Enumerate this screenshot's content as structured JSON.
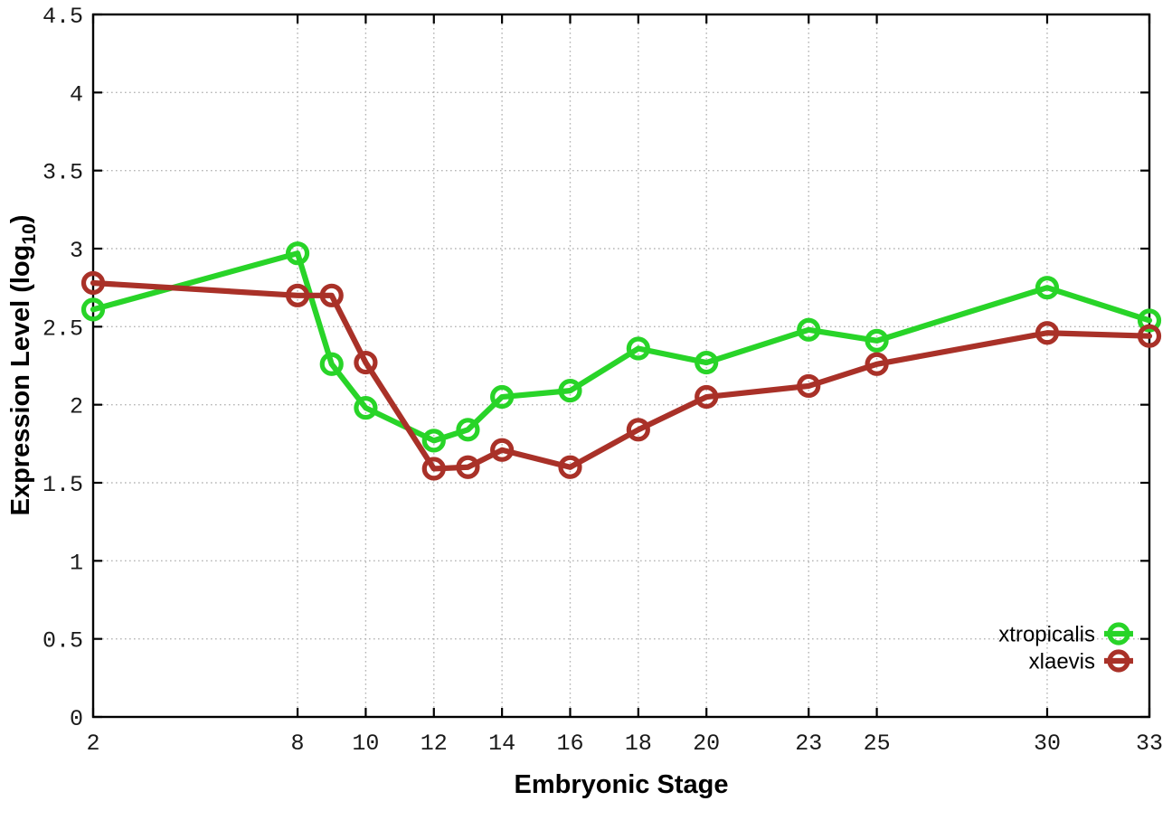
{
  "figure": {
    "background": "#ffffff"
  },
  "chart_data": {
    "type": "line",
    "title": "",
    "xlabel": "Embryonic Stage",
    "ylabel_prefix": "Expression Level (log",
    "ylabel_subscript": "10",
    "ylabel_suffix": ")",
    "xlim": [
      2,
      33
    ],
    "ylim": [
      0,
      4.5
    ],
    "x_ticks": [
      2,
      8,
      10,
      12,
      14,
      16,
      18,
      20,
      23,
      25,
      30,
      33
    ],
    "y_ticks": [
      0,
      0.5,
      1,
      1.5,
      2,
      2.5,
      3,
      3.5,
      4,
      4.5
    ],
    "y_tick_labels": [
      "0",
      "0.5",
      "1",
      "1.5",
      "2",
      "2.5",
      "3",
      "3.5",
      "4",
      "4.5"
    ],
    "grid": true,
    "legend_position": "bottom-right",
    "series": [
      {
        "name": "xtropicalis",
        "color": "#28d428",
        "x": [
          2,
          8,
          9,
          10,
          12,
          13,
          14,
          16,
          18,
          20,
          23,
          25,
          30,
          33
        ],
        "y": [
          2.61,
          2.97,
          2.26,
          1.98,
          1.77,
          1.84,
          2.05,
          2.09,
          2.36,
          2.27,
          2.48,
          2.41,
          2.75,
          2.54
        ]
      },
      {
        "name": "xlaevis",
        "color": "#a93128",
        "x": [
          2,
          8,
          9,
          10,
          12,
          13,
          14,
          16,
          18,
          20,
          23,
          25,
          30,
          33
        ],
        "y": [
          2.78,
          2.7,
          2.7,
          2.27,
          1.59,
          1.6,
          1.71,
          1.6,
          1.84,
          2.05,
          2.12,
          2.26,
          2.46,
          2.44
        ]
      }
    ],
    "axis_color": "#000000",
    "grid_color": "#b5b5b5",
    "tick_label_color": "#1a1a1a"
  }
}
